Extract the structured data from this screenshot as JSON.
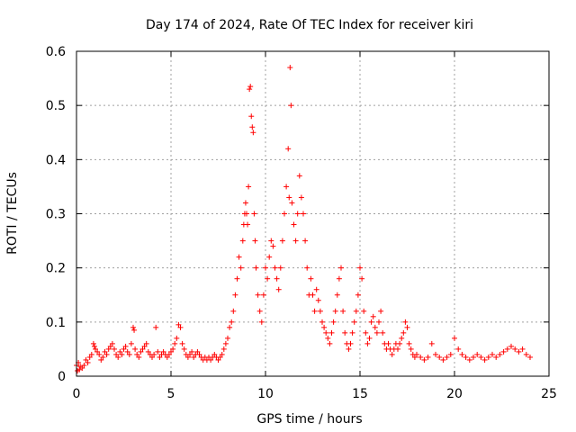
{
  "chart_data": {
    "type": "scatter",
    "title": "Day 174 of 2024, Rate Of TEC Index for receiver kiri",
    "xlabel": "GPS time / hours",
    "ylabel": "ROTI / TECUs",
    "xlim": [
      0,
      25
    ],
    "ylim": [
      0,
      0.6
    ],
    "xticks": [
      0,
      5,
      10,
      15,
      20,
      25
    ],
    "yticks": [
      0,
      0.1,
      0.2,
      0.3,
      0.4,
      0.5,
      0.6
    ],
    "xtick_labels": [
      "0",
      "5",
      "10",
      "15",
      "20",
      "25"
    ],
    "ytick_labels": [
      "0",
      "0.1",
      "0.2",
      "0.3",
      "0.4",
      "0.5",
      "0.6"
    ],
    "grid": true,
    "marker": "+",
    "color": "#ff0000",
    "series": [
      {
        "name": "ROTI",
        "points": [
          [
            0.0,
            0.02
          ],
          [
            0.05,
            0.01
          ],
          [
            0.1,
            0.025
          ],
          [
            0.15,
            0.012
          ],
          [
            0.2,
            0.018
          ],
          [
            0.3,
            0.015
          ],
          [
            0.4,
            0.02
          ],
          [
            0.5,
            0.03
          ],
          [
            0.6,
            0.025
          ],
          [
            0.7,
            0.035
          ],
          [
            0.8,
            0.04
          ],
          [
            0.9,
            0.06
          ],
          [
            0.95,
            0.055
          ],
          [
            1.0,
            0.05
          ],
          [
            1.1,
            0.045
          ],
          [
            1.2,
            0.04
          ],
          [
            1.3,
            0.03
          ],
          [
            1.4,
            0.035
          ],
          [
            1.5,
            0.045
          ],
          [
            1.6,
            0.04
          ],
          [
            1.7,
            0.05
          ],
          [
            1.8,
            0.055
          ],
          [
            1.9,
            0.06
          ],
          [
            2.0,
            0.05
          ],
          [
            2.1,
            0.04
          ],
          [
            2.2,
            0.035
          ],
          [
            2.3,
            0.045
          ],
          [
            2.4,
            0.04
          ],
          [
            2.5,
            0.05
          ],
          [
            2.6,
            0.055
          ],
          [
            2.7,
            0.045
          ],
          [
            2.8,
            0.04
          ],
          [
            2.9,
            0.06
          ],
          [
            3.0,
            0.09
          ],
          [
            3.05,
            0.085
          ],
          [
            3.1,
            0.05
          ],
          [
            3.2,
            0.04
          ],
          [
            3.3,
            0.035
          ],
          [
            3.4,
            0.045
          ],
          [
            3.5,
            0.05
          ],
          [
            3.6,
            0.055
          ],
          [
            3.7,
            0.06
          ],
          [
            3.8,
            0.045
          ],
          [
            3.9,
            0.04
          ],
          [
            4.0,
            0.035
          ],
          [
            4.1,
            0.04
          ],
          [
            4.2,
            0.09
          ],
          [
            4.3,
            0.045
          ],
          [
            4.4,
            0.035
          ],
          [
            4.5,
            0.04
          ],
          [
            4.6,
            0.045
          ],
          [
            4.7,
            0.04
          ],
          [
            4.8,
            0.035
          ],
          [
            4.9,
            0.04
          ],
          [
            5.0,
            0.045
          ],
          [
            5.1,
            0.05
          ],
          [
            5.2,
            0.06
          ],
          [
            5.3,
            0.07
          ],
          [
            5.4,
            0.095
          ],
          [
            5.5,
            0.09
          ],
          [
            5.6,
            0.06
          ],
          [
            5.7,
            0.05
          ],
          [
            5.8,
            0.04
          ],
          [
            5.9,
            0.035
          ],
          [
            6.0,
            0.04
          ],
          [
            6.1,
            0.045
          ],
          [
            6.2,
            0.035
          ],
          [
            6.3,
            0.04
          ],
          [
            6.4,
            0.045
          ],
          [
            6.5,
            0.04
          ],
          [
            6.6,
            0.035
          ],
          [
            6.7,
            0.03
          ],
          [
            6.8,
            0.035
          ],
          [
            6.9,
            0.03
          ],
          [
            7.0,
            0.035
          ],
          [
            7.1,
            0.03
          ],
          [
            7.2,
            0.035
          ],
          [
            7.3,
            0.04
          ],
          [
            7.4,
            0.035
          ],
          [
            7.5,
            0.03
          ],
          [
            7.6,
            0.035
          ],
          [
            7.7,
            0.04
          ],
          [
            7.8,
            0.05
          ],
          [
            7.9,
            0.06
          ],
          [
            8.0,
            0.07
          ],
          [
            8.1,
            0.09
          ],
          [
            8.2,
            0.1
          ],
          [
            8.3,
            0.12
          ],
          [
            8.4,
            0.15
          ],
          [
            8.5,
            0.18
          ],
          [
            8.6,
            0.22
          ],
          [
            8.7,
            0.2
          ],
          [
            8.8,
            0.25
          ],
          [
            8.85,
            0.28
          ],
          [
            8.9,
            0.3
          ],
          [
            8.95,
            0.32
          ],
          [
            9.0,
            0.3
          ],
          [
            9.05,
            0.28
          ],
          [
            9.1,
            0.35
          ],
          [
            9.15,
            0.53
          ],
          [
            9.2,
            0.535
          ],
          [
            9.25,
            0.48
          ],
          [
            9.3,
            0.46
          ],
          [
            9.35,
            0.45
          ],
          [
            9.4,
            0.3
          ],
          [
            9.45,
            0.25
          ],
          [
            9.5,
            0.2
          ],
          [
            9.6,
            0.15
          ],
          [
            9.7,
            0.12
          ],
          [
            9.8,
            0.1
          ],
          [
            9.9,
            0.15
          ],
          [
            10.0,
            0.2
          ],
          [
            10.1,
            0.18
          ],
          [
            10.2,
            0.22
          ],
          [
            10.3,
            0.25
          ],
          [
            10.4,
            0.24
          ],
          [
            10.5,
            0.2
          ],
          [
            10.6,
            0.18
          ],
          [
            10.7,
            0.16
          ],
          [
            10.8,
            0.2
          ],
          [
            10.9,
            0.25
          ],
          [
            11.0,
            0.3
          ],
          [
            11.1,
            0.35
          ],
          [
            11.2,
            0.42
          ],
          [
            11.25,
            0.33
          ],
          [
            11.3,
            0.57
          ],
          [
            11.35,
            0.5
          ],
          [
            11.4,
            0.32
          ],
          [
            11.5,
            0.28
          ],
          [
            11.6,
            0.25
          ],
          [
            11.7,
            0.3
          ],
          [
            11.8,
            0.37
          ],
          [
            11.9,
            0.33
          ],
          [
            12.0,
            0.3
          ],
          [
            12.1,
            0.25
          ],
          [
            12.2,
            0.2
          ],
          [
            12.3,
            0.15
          ],
          [
            12.4,
            0.18
          ],
          [
            12.5,
            0.15
          ],
          [
            12.6,
            0.12
          ],
          [
            12.7,
            0.16
          ],
          [
            12.8,
            0.14
          ],
          [
            12.9,
            0.12
          ],
          [
            13.0,
            0.1
          ],
          [
            13.1,
            0.09
          ],
          [
            13.2,
            0.08
          ],
          [
            13.3,
            0.07
          ],
          [
            13.4,
            0.06
          ],
          [
            13.5,
            0.08
          ],
          [
            13.6,
            0.1
          ],
          [
            13.7,
            0.12
          ],
          [
            13.8,
            0.15
          ],
          [
            13.9,
            0.18
          ],
          [
            14.0,
            0.2
          ],
          [
            14.1,
            0.12
          ],
          [
            14.2,
            0.08
          ],
          [
            14.3,
            0.06
          ],
          [
            14.4,
            0.05
          ],
          [
            14.5,
            0.06
          ],
          [
            14.6,
            0.08
          ],
          [
            14.7,
            0.1
          ],
          [
            14.8,
            0.12
          ],
          [
            14.9,
            0.15
          ],
          [
            15.0,
            0.2
          ],
          [
            15.1,
            0.18
          ],
          [
            15.2,
            0.12
          ],
          [
            15.3,
            0.08
          ],
          [
            15.4,
            0.06
          ],
          [
            15.5,
            0.07
          ],
          [
            15.6,
            0.1
          ],
          [
            15.7,
            0.11
          ],
          [
            15.8,
            0.09
          ],
          [
            15.9,
            0.08
          ],
          [
            16.0,
            0.1
          ],
          [
            16.1,
            0.12
          ],
          [
            16.2,
            0.08
          ],
          [
            16.3,
            0.06
          ],
          [
            16.4,
            0.05
          ],
          [
            16.5,
            0.06
          ],
          [
            16.6,
            0.05
          ],
          [
            16.7,
            0.04
          ],
          [
            16.8,
            0.05
          ],
          [
            16.9,
            0.06
          ],
          [
            17.0,
            0.05
          ],
          [
            17.1,
            0.06
          ],
          [
            17.2,
            0.07
          ],
          [
            17.3,
            0.08
          ],
          [
            17.4,
            0.1
          ],
          [
            17.5,
            0.09
          ],
          [
            17.6,
            0.06
          ],
          [
            17.7,
            0.05
          ],
          [
            17.8,
            0.04
          ],
          [
            17.9,
            0.035
          ],
          [
            18.0,
            0.04
          ],
          [
            18.2,
            0.035
          ],
          [
            18.4,
            0.03
          ],
          [
            18.6,
            0.035
          ],
          [
            18.8,
            0.06
          ],
          [
            19.0,
            0.04
          ],
          [
            19.2,
            0.035
          ],
          [
            19.4,
            0.03
          ],
          [
            19.6,
            0.035
          ],
          [
            19.8,
            0.04
          ],
          [
            20.0,
            0.07
          ],
          [
            20.2,
            0.05
          ],
          [
            20.4,
            0.04
          ],
          [
            20.6,
            0.035
          ],
          [
            20.8,
            0.03
          ],
          [
            21.0,
            0.035
          ],
          [
            21.2,
            0.04
          ],
          [
            21.4,
            0.035
          ],
          [
            21.6,
            0.03
          ],
          [
            21.8,
            0.035
          ],
          [
            22.0,
            0.04
          ],
          [
            22.2,
            0.035
          ],
          [
            22.4,
            0.04
          ],
          [
            22.6,
            0.045
          ],
          [
            22.8,
            0.05
          ],
          [
            23.0,
            0.055
          ],
          [
            23.2,
            0.05
          ],
          [
            23.4,
            0.045
          ],
          [
            23.6,
            0.05
          ],
          [
            23.8,
            0.04
          ],
          [
            24.0,
            0.035
          ]
        ]
      }
    ]
  }
}
